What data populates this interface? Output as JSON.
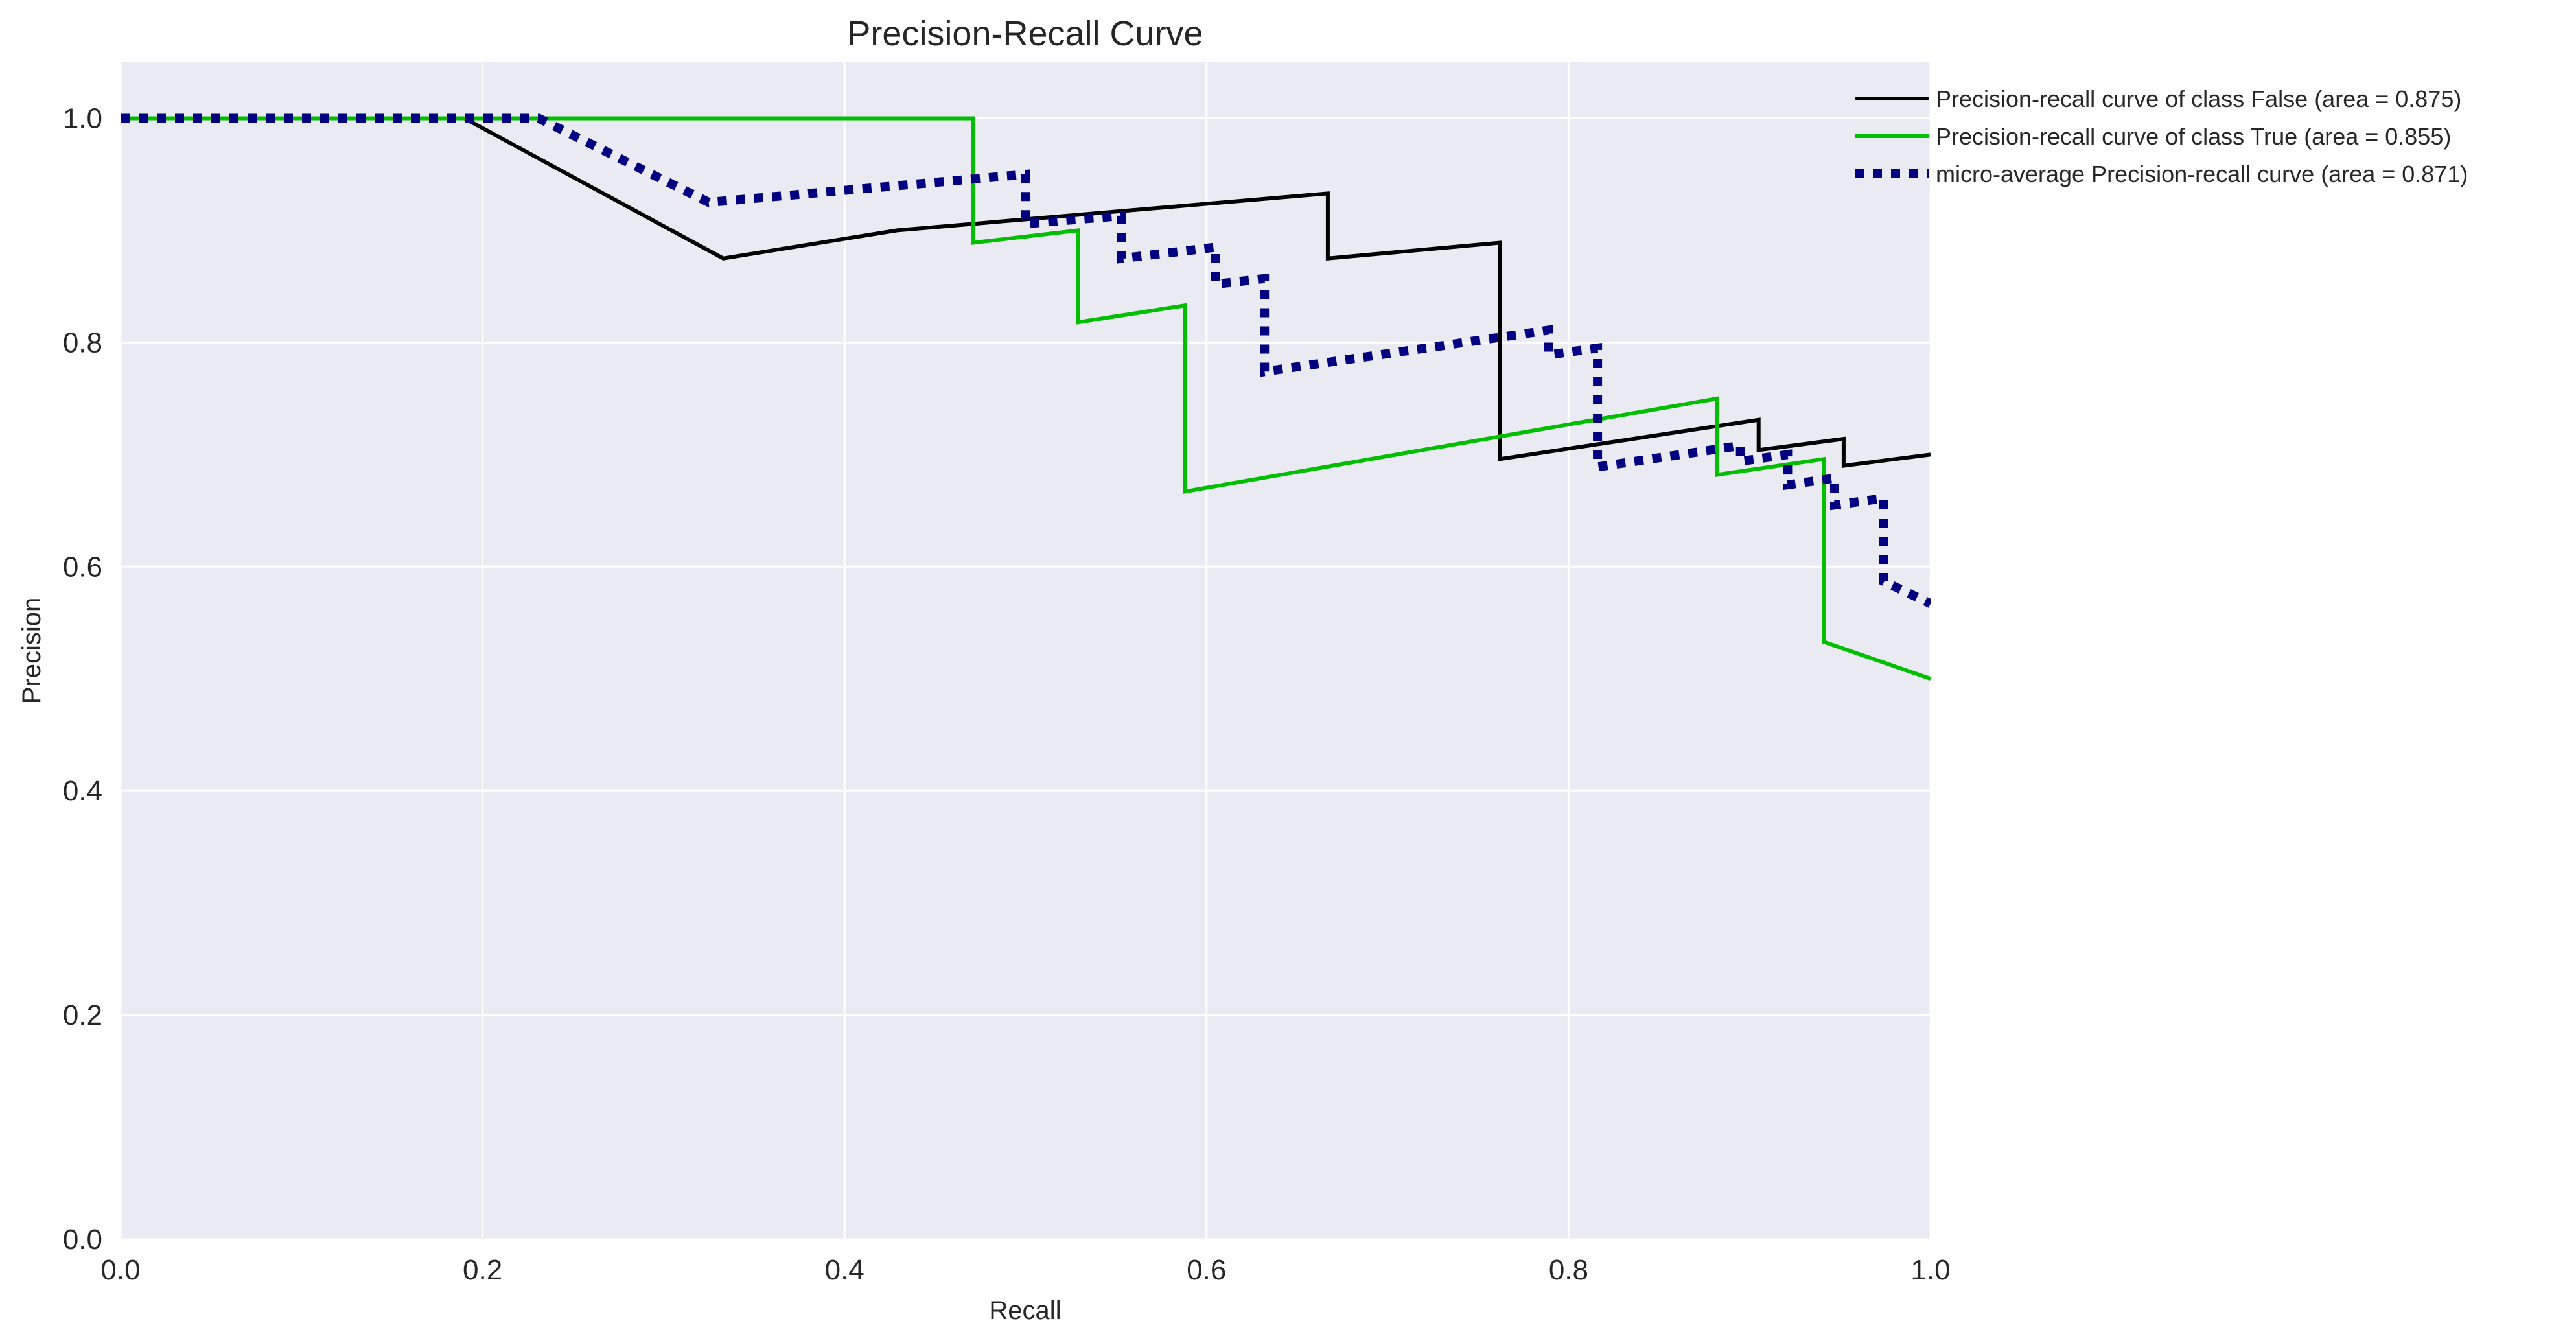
{
  "chart_data": {
    "type": "line",
    "title": "Precision-Recall Curve",
    "xlabel": "Recall",
    "ylabel": "Precision",
    "xlim": [
      0.0,
      1.0
    ],
    "ylim": [
      0.0,
      1.05
    ],
    "xticks": [
      "0.0",
      "0.2",
      "0.4",
      "0.6",
      "0.8",
      "1.0"
    ],
    "yticks": [
      "0.0",
      "0.2",
      "0.4",
      "0.6",
      "0.8",
      "1.0"
    ],
    "grid": true,
    "legend_position": "outside-right, top",
    "background_color": "#eaeaf2",
    "series": [
      {
        "name": "Precision-recall curve of class False (area = 0.875)",
        "color": "#000000",
        "style": "solid",
        "points": [
          [
            0.0,
            1.0
          ],
          [
            0.19,
            1.0
          ],
          [
            0.333,
            0.875
          ],
          [
            0.429,
            0.9
          ],
          [
            0.667,
            0.933
          ],
          [
            0.667,
            0.875
          ],
          [
            0.762,
            0.889
          ],
          [
            0.762,
            0.696
          ],
          [
            0.905,
            0.731
          ],
          [
            0.905,
            0.704
          ],
          [
            0.952,
            0.714
          ],
          [
            0.952,
            0.69
          ],
          [
            1.0,
            0.7
          ]
        ]
      },
      {
        "name": "Precision-recall curve of class True (area = 0.855)",
        "color": "#00bf00",
        "style": "solid",
        "points": [
          [
            0.0,
            1.0
          ],
          [
            0.471,
            1.0
          ],
          [
            0.471,
            0.889
          ],
          [
            0.529,
            0.9
          ],
          [
            0.529,
            0.818
          ],
          [
            0.588,
            0.833
          ],
          [
            0.588,
            0.667
          ],
          [
            0.882,
            0.75
          ],
          [
            0.882,
            0.682
          ],
          [
            0.941,
            0.696
          ],
          [
            0.941,
            0.533
          ],
          [
            1.0,
            0.5
          ]
        ]
      },
      {
        "name": "micro-average Precision-recall curve (area = 0.871)",
        "color": "#000080",
        "style": "dotted",
        "points": [
          [
            0.0,
            1.0
          ],
          [
            0.231,
            1.0
          ],
          [
            0.325,
            0.925
          ],
          [
            0.5,
            0.95
          ],
          [
            0.5,
            0.906
          ],
          [
            0.553,
            0.913
          ],
          [
            0.553,
            0.875
          ],
          [
            0.605,
            0.885
          ],
          [
            0.605,
            0.852
          ],
          [
            0.632,
            0.857
          ],
          [
            0.632,
            0.774
          ],
          [
            0.789,
            0.811
          ],
          [
            0.789,
            0.789
          ],
          [
            0.816,
            0.795
          ],
          [
            0.816,
            0.689
          ],
          [
            0.895,
            0.708
          ],
          [
            0.895,
            0.694
          ],
          [
            0.921,
            0.7
          ],
          [
            0.921,
            0.673
          ],
          [
            0.947,
            0.679
          ],
          [
            0.947,
            0.655
          ],
          [
            0.974,
            0.661
          ],
          [
            0.974,
            0.587
          ],
          [
            1.0,
            0.567
          ]
        ]
      }
    ]
  }
}
